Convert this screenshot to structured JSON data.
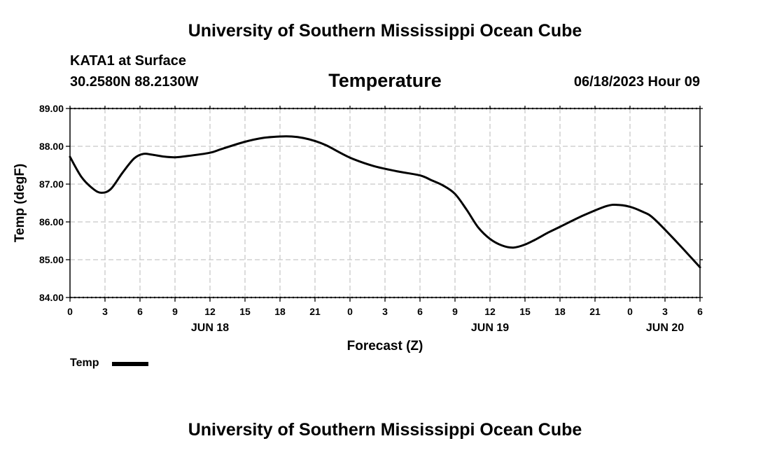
{
  "header": {
    "title_top": "University of Southern Mississippi Ocean Cube",
    "station": "KATA1 at Surface",
    "coords": "30.2580N  88.2130W",
    "chart_title": "Temperature",
    "valid_time": "06/18/2023 Hour 09"
  },
  "footer": {
    "title_bottom": "University of Southern Mississippi Ocean Cube"
  },
  "legend": {
    "label": "Temp"
  },
  "colors": {
    "line": "#000000",
    "grid": "#c8c8c8",
    "axis": "#000000"
  },
  "chart_data": {
    "type": "line",
    "title": "Temperature",
    "xlabel": "Forecast (Z)",
    "ylabel": "Temp (degF)",
    "xlim": [
      0,
      54
    ],
    "ylim": [
      84.0,
      89.0
    ],
    "x_tick_labels": [
      "0",
      "3",
      "6",
      "9",
      "12",
      "15",
      "18",
      "21",
      "0",
      "3",
      "6",
      "9",
      "12",
      "15",
      "18",
      "21",
      "0",
      "3",
      "6"
    ],
    "y_tick_labels": [
      "84.00",
      "85.00",
      "86.00",
      "87.00",
      "88.00",
      "89.00"
    ],
    "day_labels": [
      {
        "label": "JUN 18",
        "hour": 12
      },
      {
        "label": "JUN 19",
        "hour": 36
      },
      {
        "label": "JUN 20",
        "hour": 51
      }
    ],
    "grid": true,
    "series": [
      {
        "name": "Temp",
        "x": [
          0,
          1,
          2,
          2.7,
          3.5,
          4.5,
          5.5,
          6.3,
          7,
          8,
          9,
          10,
          12,
          13,
          15,
          16.5,
          18,
          19,
          20,
          21,
          22,
          24,
          26,
          28,
          30,
          31,
          32,
          33,
          34,
          35,
          36,
          37,
          38,
          39,
          40,
          41,
          42,
          44,
          46,
          47,
          48,
          49,
          50,
          52,
          54
        ],
        "values": [
          87.72,
          87.18,
          86.87,
          86.77,
          86.87,
          87.3,
          87.68,
          87.8,
          87.78,
          87.73,
          87.71,
          87.74,
          87.83,
          87.93,
          88.12,
          88.22,
          88.26,
          88.26,
          88.22,
          88.14,
          88.02,
          87.7,
          87.48,
          87.34,
          87.23,
          87.1,
          86.96,
          86.74,
          86.32,
          85.85,
          85.55,
          85.38,
          85.32,
          85.4,
          85.55,
          85.72,
          85.87,
          86.17,
          86.42,
          86.45,
          86.4,
          86.28,
          86.1,
          85.47,
          84.8
        ]
      }
    ]
  }
}
